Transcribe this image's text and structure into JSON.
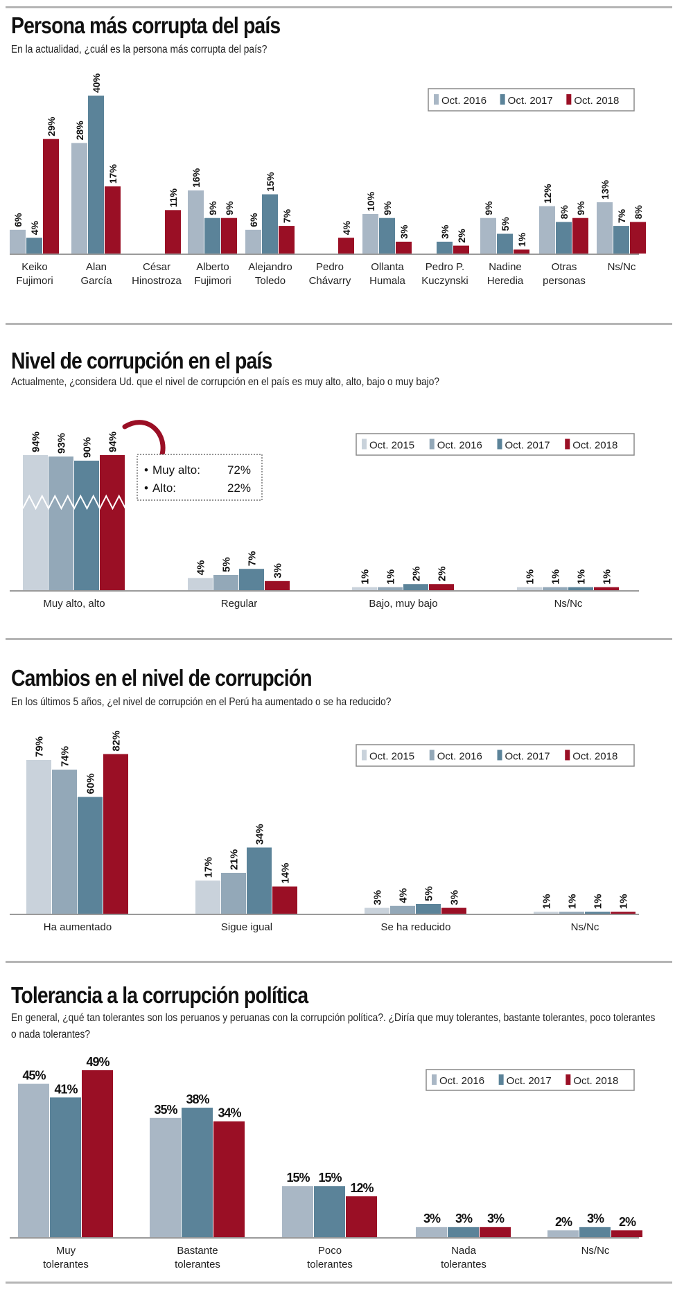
{
  "chart_data": [
    {
      "type": "bar",
      "title": "Persona más corrupta del país",
      "subtitle": "En la actualidad, ¿cuál es la persona más corrupta del país?",
      "legend_placement": "top-right",
      "categories": [
        [
          "Keiko",
          "Fujimori"
        ],
        [
          "Alan",
          "García"
        ],
        [
          "César",
          "Hinostroza"
        ],
        [
          "Alberto",
          "Fujimori"
        ],
        [
          "Alejandro",
          "Toledo"
        ],
        [
          "Pedro",
          "Chávarry"
        ],
        [
          "Ollanta",
          "Humala"
        ],
        [
          "Pedro P.",
          "Kuczynski"
        ],
        [
          "Nadine",
          "Heredia"
        ],
        [
          "Otras",
          "personas"
        ],
        [
          "Ns/Nc",
          ""
        ]
      ],
      "series": [
        {
          "name": "Oct. 2016",
          "color": "#a9b7c5",
          "values": [
            6,
            28,
            null,
            16,
            6,
            null,
            10,
            null,
            9,
            12,
            13
          ]
        },
        {
          "name": "Oct. 2017",
          "color": "#5b8399",
          "values": [
            4,
            40,
            null,
            9,
            15,
            null,
            9,
            3,
            5,
            8,
            7
          ]
        },
        {
          "name": "Oct. 2018",
          "color": "#9a0f25",
          "values": [
            29,
            17,
            11,
            9,
            7,
            4,
            3,
            2,
            1,
            9,
            8
          ]
        }
      ],
      "unit": "%"
    },
    {
      "type": "bar",
      "title": "Nivel de corrupción en el país",
      "subtitle": "Actualmente, ¿considera Ud. que el nivel de corrupción en el país es muy alto, alto, bajo o muy bajo?",
      "legend_placement": "top-right",
      "axis_break": true,
      "categories": [
        [
          "Muy alto, alto"
        ],
        [
          "Regular"
        ],
        [
          "Bajo, muy bajo"
        ],
        [
          "Ns/Nc"
        ]
      ],
      "series": [
        {
          "name": "Oct. 2015",
          "color": "#c9d2db",
          "values": [
            94,
            4,
            1,
            1
          ]
        },
        {
          "name": "Oct. 2016",
          "color": "#93a8b8",
          "values": [
            93,
            5,
            1,
            1
          ]
        },
        {
          "name": "Oct. 2017",
          "color": "#5b8399",
          "values": [
            90,
            7,
            2,
            1
          ]
        },
        {
          "name": "Oct. 2018",
          "color": "#9a0f25",
          "values": [
            94,
            3,
            2,
            1
          ]
        }
      ],
      "callout": {
        "items": [
          {
            "label": "Muy alto:",
            "value": "72%"
          },
          {
            "label": "Alto:",
            "value": "22%"
          }
        ]
      },
      "unit": "%"
    },
    {
      "type": "bar",
      "title": "Cambios en el nivel de corrupción",
      "subtitle": "En los últimos 5 años, ¿el nivel de corrupción en el Perú ha aumentado o se ha reducido?",
      "legend_placement": "top-right",
      "categories": [
        [
          "Ha aumentado"
        ],
        [
          "Sigue igual"
        ],
        [
          "Se ha reducido"
        ],
        [
          "Ns/Nc"
        ]
      ],
      "series": [
        {
          "name": "Oct. 2015",
          "color": "#c9d2db",
          "values": [
            79,
            17,
            3,
            1
          ]
        },
        {
          "name": "Oct. 2016",
          "color": "#93a8b8",
          "values": [
            74,
            21,
            4,
            1
          ]
        },
        {
          "name": "Oct. 2017",
          "color": "#5b8399",
          "values": [
            60,
            34,
            5,
            1
          ]
        },
        {
          "name": "Oct. 2018",
          "color": "#9a0f25",
          "values": [
            82,
            14,
            3,
            1
          ]
        }
      ],
      "unit": "%"
    },
    {
      "type": "bar",
      "title": "Tolerancia a la corrupción política",
      "subtitle": "En general, ¿qué tan tolerantes son los peruanos y peruanas con la corrupción política?. ¿Diría que muy tolerantes, bastante tolerantes, poco tolerantes o nada tolerantes?",
      "legend_placement": "top-right",
      "categories": [
        [
          "Muy",
          "tolerantes"
        ],
        [
          "Bastante",
          "tolerantes"
        ],
        [
          "Poco",
          "tolerantes"
        ],
        [
          "Nada",
          "tolerantes"
        ],
        [
          "Ns/Nc"
        ]
      ],
      "series": [
        {
          "name": "Oct. 2016",
          "color": "#a9b7c5",
          "values": [
            45,
            35,
            15,
            3,
            2
          ]
        },
        {
          "name": "Oct. 2017",
          "color": "#5b8399",
          "values": [
            41,
            38,
            15,
            3,
            3
          ]
        },
        {
          "name": "Oct. 2018",
          "color": "#9a0f25",
          "values": [
            49,
            34,
            12,
            3,
            2
          ]
        }
      ],
      "unit": "%"
    }
  ]
}
